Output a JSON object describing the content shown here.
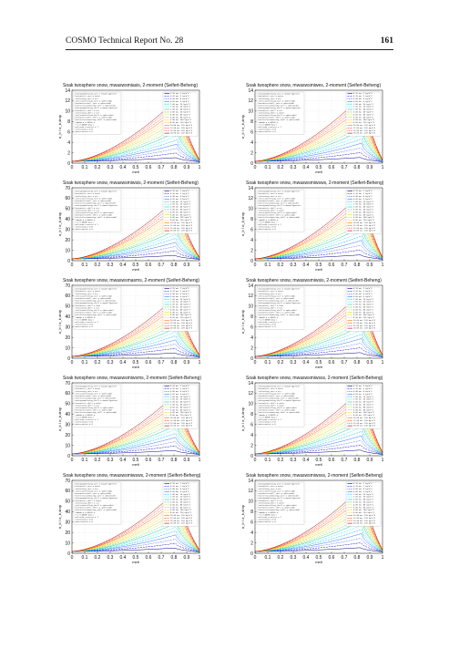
{
  "header": {
    "title": "COSMO Technical Report No. 28",
    "page_number": "161"
  },
  "legend_sizes": [
    "0.10 mm, 1 kg/m^3",
    "0.20 mm, 2 kg/m^3",
    "0.40 mm, 4 kg/m^3",
    "0.60 mm, 6 kg/m^3",
    "1.00 mm, 10 kg/m^3",
    "1.50 mm, 20 kg/m^3",
    "2.00 mm, 40 kg/m^3",
    "3.00 mm, 60 kg/m^3",
    "4.00 mm, 80 kg/m^3",
    "5.00 mm, 90 kg/m^3",
    "6.00 mm, 100 kg/m^3",
    "8.00 mm, 110 kg/m^3",
    "10.00 mm, 120 kg/m^3",
    "12.00 mm, 120 kg/m^3",
    "15.00 mm, 120 kg/m^3",
    "20.00 mm, 120 kg/m^3"
  ],
  "series_colors": [
    "#00008b",
    "#0000cd",
    "#1e3cff",
    "#2c7bff",
    "#00b4ff",
    "#00e0e0",
    "#20d0a0",
    "#60d060",
    "#a0e040",
    "#d8e020",
    "#ffd000",
    "#ffa000",
    "#ff7000",
    "#ff4000",
    "#e00000",
    "#b00000"
  ],
  "chart_data": [
    {
      "type": "line",
      "title": "Soak twosphere snow, mwaswsmiasis, 2-moment (Seifert-Beheng)",
      "xlabel": "melt",
      "ylabel": "σ_b / σ_b,drop",
      "xlim": [
        0,
        1
      ],
      "ylim": [
        0,
        14
      ],
      "xticks": [
        0,
        0.1,
        0.2,
        0.3,
        0.4,
        0.5,
        0.6,
        0.7,
        0.8,
        0.9,
        1
      ],
      "yticks": [
        0,
        2,
        4,
        6,
        8,
        10,
        12,
        14
      ],
      "peak_x": 0.85,
      "peak_y": 12.9,
      "end_y": 0.6,
      "grid": true,
      "legend": "top-right",
      "legend_left": [
        "mixingcomplexing_core = maxwellgarnett",
        "hostmatrix_core = water",
        "inclmixing_core = air",
        "inclusionrolling_core = spheroidal",
        "hostmatrixshell_core = spheroidal",
        "hostinclusionmixing_core = spheroidal",
        "mixingcomplexing_shell = maxwellgarnett",
        "hostmatrix_shell = air",
        "inclmixing_shell = air",
        "inclusionrolling_shell = spheroidal",
        "hostmatrixshell_shell = spheroidal",
        "hostinclusionmixing_shell = spheroidal",
        "lambda = 0.05555 m",
        "T = 0.00000 deg C",
        "meltsoku_crosscut = 1",
        "inclmixing = 0.8",
        "watercontent = 0"
      ]
    },
    {
      "type": "line",
      "title": "Soak twosphere snow, mwaswsmiwes, 2-moment (Seifert-Beheng)",
      "xlabel": "melt",
      "ylabel": "σ_b / σ_b,drop",
      "xlim": [
        0,
        1
      ],
      "ylim": [
        0,
        14
      ],
      "xticks": [
        0,
        0.1,
        0.2,
        0.3,
        0.4,
        0.5,
        0.6,
        0.7,
        0.8,
        0.9,
        1
      ],
      "yticks": [
        0,
        2,
        4,
        6,
        8,
        10,
        12,
        14
      ],
      "peak_x": 0.86,
      "peak_y": 13.4,
      "end_y": 0.6,
      "grid": true,
      "legend": "top-right",
      "legend_left": [
        "mixingcomplexing_core = maxwellgarnett",
        "hostmatrix_core = water",
        "inclmixing_core = air",
        "inclusionrolling_core = spheroidal",
        "hostmatrixshell_core = spheroidal",
        "hostinclusionmixing_core = spheroidal",
        "mixingcomplexing_shell = maxwellgarnett",
        "hostmatrix_shell = air",
        "inclmixing_shell = water",
        "inclusionrolling_shell = spheroidal",
        "hostmatrixshell_shell = spheroidal",
        "hostinclusionmixing_shell = spheroidal",
        "lambda = 0.05555 m",
        "T = 0.00000 deg C",
        "meltsoku_crosscut = 1",
        "inclmixing = 0.8",
        "watercontent = 0"
      ]
    },
    {
      "type": "line",
      "title": "Soak twosphere snow, mwaswsmiwsis, 2-moment (Seifert-Beheng)",
      "xlabel": "melt",
      "ylabel": "σ_b / σ_b,drop",
      "xlim": [
        0,
        1
      ],
      "ylim": [
        0,
        70
      ],
      "xticks": [
        0,
        0.1,
        0.2,
        0.3,
        0.4,
        0.5,
        0.6,
        0.7,
        0.8,
        0.9,
        1
      ],
      "yticks": [
        0,
        10,
        20,
        30,
        40,
        50,
        60,
        70
      ],
      "peak_x": 0.84,
      "peak_y": 62,
      "end_y": 3,
      "grid": true,
      "legend": "top-right",
      "legend_left": [
        "mixingcomplexing_core = maxwellgarnett",
        "hostmatrix_core = water",
        "inclmixing_core = air",
        "inclusionrolling_core = spheroidal",
        "hostmatrixshell_core = spheroidal",
        "hostinclusionmixing_core = spheroidal",
        "mixingcomplexing_shell = maxwellgarnett",
        "hostmatrix_shell = air",
        "inclmixing_shell = ice",
        "inclusionrolling_shell = spheroidal",
        "hostmatrixshell_shell = spheroidal",
        "hostinclusionmixing_shell = spheroidal",
        "lambda = 0.05555 m",
        "T = 0.00000 deg C",
        "meltsoku_crosscut = 1",
        "inclmixing = 0.8",
        "watercontent = 0"
      ]
    },
    {
      "type": "line",
      "title": "Soak twosphere snow, mwaswsmiwsws, 2-moment (Seifert-Beheng)",
      "xlabel": "melt",
      "ylabel": "σ_b / σ_b,drop",
      "xlim": [
        0,
        1
      ],
      "ylim": [
        0,
        14
      ],
      "xticks": [
        0,
        0.1,
        0.2,
        0.3,
        0.4,
        0.5,
        0.6,
        0.7,
        0.8,
        0.9,
        1
      ],
      "yticks": [
        0,
        2,
        4,
        6,
        8,
        10,
        12,
        14
      ],
      "peak_x": 0.86,
      "peak_y": 13.6,
      "end_y": 0.6,
      "grid": true,
      "legend": "top-right",
      "legend_left": [
        "mixingcomplexing_core = maxwellgarnett",
        "hostmatrix_core = water",
        "inclmixing_core = air",
        "inclusionrolling_core = spheroidal",
        "hostmatrixshell_core = spheroidal",
        "hostinclusionmixing_core = spheroidal",
        "mixingcomplexing_shell = maxwellgarnett",
        "hostmatrix_shell = air",
        "inclmixing_shell = water",
        "inclusionrolling_shell = spheroidal",
        "hostmatrixshell_shell = spheroidal",
        "hostinclusionmixing_shell = spheroidal",
        "lambda = 0.05555 m",
        "T = 0.00000 deg C",
        "meltsoku_crosscut = 1",
        "inclmixing = 0.8",
        "watercontent = 0"
      ]
    },
    {
      "type": "line",
      "title": "Soak twosphere snow, mwaswsmasms, 2-moment (Seifert-Beheng)",
      "xlabel": "melt",
      "ylabel": "σ_b / σ_b,drop",
      "xlim": [
        0,
        1
      ],
      "ylim": [
        0,
        70
      ],
      "xticks": [
        0,
        0.1,
        0.2,
        0.3,
        0.4,
        0.5,
        0.6,
        0.7,
        0.8,
        0.9,
        1
      ],
      "yticks": [
        0,
        10,
        20,
        30,
        40,
        50,
        60,
        70
      ],
      "peak_x": 0.84,
      "peak_y": 62,
      "end_y": 3,
      "grid": true,
      "legend": "top-right",
      "legend_left": [
        "mixingcomplexing_core = maxwellgarnett",
        "hostmatrix_core = water",
        "inclmixing_core = air",
        "inclusionrolling_core = spheroidal",
        "hostmatrixshell_core = spheroidal",
        "hostinclusionmixing_core = spheroidal",
        "mixingcomplexing_shell = maxwellgarnett",
        "hostmatrix_shell = none",
        "inclmixing_shell = air",
        "inclusionrolling_shell = spheroidal",
        "hostmatrixshell_shell = spheroidal",
        "hostinclusionmixing_shell = spheroidal",
        "lambda = 0.05555 m",
        "T = 0.00000 deg C",
        "meltsoku_crosscut = 1",
        "inclmixing = 0.8",
        "watercontent = 0"
      ]
    },
    {
      "type": "line",
      "title": "Soak twosphere snow, mwaswsmiwsis, 2-moment (Seifert-Beheng)",
      "xlabel": "melt",
      "ylabel": "σ_b / σ_b,drop",
      "xlim": [
        0,
        1
      ],
      "ylim": [
        0,
        14
      ],
      "xticks": [
        0,
        0.1,
        0.2,
        0.3,
        0.4,
        0.5,
        0.6,
        0.7,
        0.8,
        0.9,
        1
      ],
      "yticks": [
        0,
        2,
        4,
        6,
        8,
        10,
        12,
        14
      ],
      "peak_x": 0.86,
      "peak_y": 13.2,
      "end_y": 0.6,
      "grid": true,
      "legend": "top-right",
      "legend_left": [
        "mixingcomplexing_core = maxwellgarnett",
        "hostmatrix_core = water",
        "inclmixing_core = air",
        "inclusionrolling_core = spheroidal",
        "hostmatrixshell_core = spheroidal",
        "hostinclusionmixing_core = spheroidal",
        "mixingcomplexing_shell = maxwellgarnett",
        "hostmatrix_shell = none",
        "inclmixing_shell = ice",
        "inclusionrolling_shell = spheroidal",
        "hostmatrixshell_shell = spheroidal",
        "hostinclusionmixing_shell = spheroidal",
        "lambda = 0.05555 m",
        "T = 0.00000 deg C",
        "meltsoku_crosscut = 1",
        "inclmixing = 0.8",
        "watercontent = 0"
      ]
    },
    {
      "type": "line",
      "title": "Soak twosphere snow, mwaswsmiwsms, 2-moment (Seifert-Beheng)",
      "xlabel": "melt",
      "ylabel": "σ_b / σ_b,drop",
      "xlim": [
        0,
        1
      ],
      "ylim": [
        0,
        70
      ],
      "xticks": [
        0,
        0.1,
        0.2,
        0.3,
        0.4,
        0.5,
        0.6,
        0.7,
        0.8,
        0.9,
        1
      ],
      "yticks": [
        0,
        10,
        20,
        30,
        40,
        50,
        60,
        70
      ],
      "peak_x": 0.84,
      "peak_y": 62,
      "end_y": 3,
      "grid": true,
      "legend": "top-right",
      "legend_left": [
        "mixingcomplexing_core = maxwellgarnett",
        "hostmatrix_core = water",
        "inclmixing_core = air",
        "inclusionrolling_core = spheroidal",
        "hostmatrixshell_core = spheroidal",
        "hostinclusionmixing_core = spheroidal",
        "mixingcomplexing_shell = maxwellgarnett",
        "hostmatrix_shell = water",
        "inclmixing_shell = air",
        "inclusionrolling_shell = spheroidal",
        "hostmatrixshell_shell = spheroidal",
        "hostinclusionmixing_shell = spheroidal",
        "lambda = 0.05555 m",
        "T = 0.00000 deg C",
        "meltsoku_crosscut = 1",
        "inclmixing = 0.8",
        "watercontent = 0"
      ]
    },
    {
      "type": "line",
      "title": "Soak twosphere snow, mwaswsmiwsss, 2-moment (Seifert-Beheng)",
      "xlabel": "melt",
      "ylabel": "σ_b / σ_b,drop",
      "xlim": [
        0,
        1
      ],
      "ylim": [
        0,
        14
      ],
      "xticks": [
        0,
        0.1,
        0.2,
        0.3,
        0.4,
        0.5,
        0.6,
        0.7,
        0.8,
        0.9,
        1
      ],
      "yticks": [
        0,
        2,
        4,
        6,
        8,
        10,
        12,
        14
      ],
      "peak_x": 0.86,
      "peak_y": 13.4,
      "end_y": 0.6,
      "grid": true,
      "legend": "top-right",
      "legend_left": [
        "mixingcomplexing_core = maxwellgarnett",
        "hostmatrix_core = water",
        "inclmixing_core = air",
        "inclusionrolling_core = spheroidal",
        "hostmatrixshell_core = spheroidal",
        "hostinclusionmixing_core = spheroidal",
        "mixingcomplexing_shell = maxwellgarnett",
        "hostmatrix_shell = water",
        "inclmixing_shell = water",
        "inclusionrolling_shell = spheroidal",
        "hostmatrixshell_shell = spheroidal",
        "hostinclusionmixing_shell = spheroidal",
        "lambda = 0.05555 m",
        "T = 0.00000 deg C",
        "meltsoku_crosscut = 1",
        "inclmixing = 0.8",
        "watercontent = 0"
      ]
    },
    {
      "type": "line",
      "title": "Soak twosphere snow, mwaswsmiwsws, 2-moment (Seifert-Beheng)",
      "xlabel": "melt",
      "ylabel": "σ_b / σ_b,drop",
      "xlim": [
        0,
        1
      ],
      "ylim": [
        0,
        70
      ],
      "xticks": [
        0,
        0.1,
        0.2,
        0.3,
        0.4,
        0.5,
        0.6,
        0.7,
        0.8,
        0.9,
        1
      ],
      "yticks": [
        0,
        10,
        20,
        30,
        40,
        50,
        60,
        70
      ],
      "peak_x": 0.84,
      "peak_y": 62,
      "end_y": 3,
      "grid": true,
      "legend": "top-right",
      "legend_left": [
        "mixingcomplexing_core = maxwellgarnett",
        "hostmatrix_core = water",
        "inclmixing_core = air",
        "inclusionrolling_core = spheroidal",
        "hostmatrixshell_core = spheroidal",
        "hostinclusionmixing_core = spheroidal",
        "mixingcomplexing_shell = maxwellgarnett",
        "hostmatrix_shell = water",
        "inclmixing_shell = ice",
        "inclusionrolling_shell = spheroidal",
        "hostmatrixshell_shell = spheroidal",
        "hostinclusionmixing_shell = spheroidal",
        "lambda = 0.05555 m",
        "T = 0.00000 deg C",
        "meltsoku_crosscut = 1",
        "inclmixing = 0.8",
        "watercontent = 0"
      ]
    },
    {
      "type": "line",
      "title": "Soak twosphere snow, mwaswsmiwsss, 2-moment (Seifert-Beheng)",
      "xlabel": "melt",
      "ylabel": "σ_b / σ_b,drop",
      "xlim": [
        0,
        1
      ],
      "ylim": [
        0,
        14
      ],
      "xticks": [
        0,
        0.1,
        0.2,
        0.3,
        0.4,
        0.5,
        0.6,
        0.7,
        0.8,
        0.9,
        1
      ],
      "yticks": [
        0,
        2,
        4,
        6,
        8,
        10,
        12,
        14
      ],
      "peak_x": 0.86,
      "peak_y": 13.2,
      "end_y": 0.6,
      "grid": true,
      "legend": "top-right",
      "legend_left": [
        "mixingcomplexing_core = maxwellgarnett",
        "hostmatrix_core = water",
        "inclmixing_core = air",
        "inclusionrolling_core = spheroidal",
        "hostmatrixshell_core = spheroidal",
        "hostinclusionmixing_core = spheroidal",
        "mixingcomplexing_shell = maxwellgarnett",
        "hostmatrix_shell = ice",
        "inclmixing_shell = water",
        "inclusionrolling_shell = spheroidal",
        "hostmatrixshell_shell = spheroidal",
        "hostinclusionmixing_shell = spheroidal",
        "lambda = 0.05555 m",
        "T = 0.00000 deg C",
        "meltsoku_crosscut = 1",
        "inclmixing = 0.8",
        "watercontent = 0"
      ]
    }
  ]
}
